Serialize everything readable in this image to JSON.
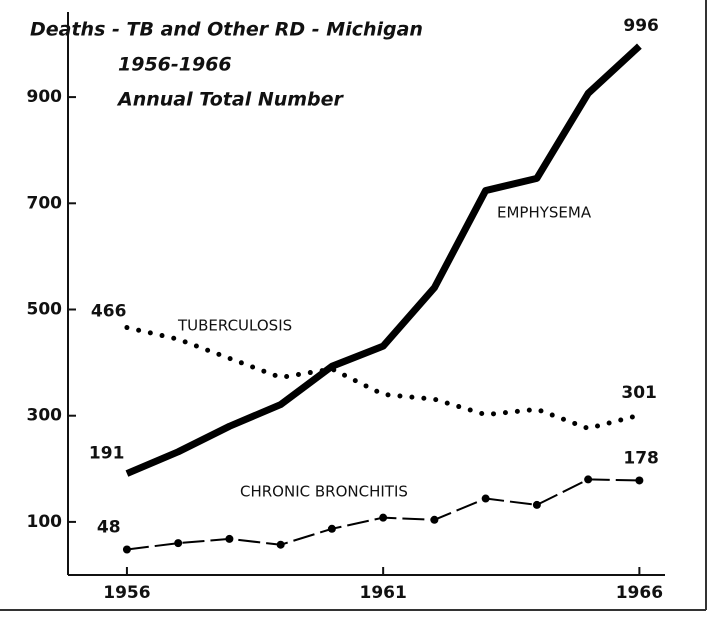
{
  "chart_data": {
    "type": "line",
    "title": "Deaths - TB and Other RD - Michigan",
    "subtitle": [
      "1956-1966",
      "Annual Total Number"
    ],
    "x": [
      1956,
      1957,
      1958,
      1959,
      1960,
      1961,
      1962,
      1963,
      1964,
      1965,
      1966
    ],
    "series": [
      {
        "name": "EMPHYSEMA",
        "color": "#000000",
        "line_style": "solid",
        "values": [
          191,
          232,
          280,
          321,
          393,
          431,
          541,
          724,
          747,
          907,
          996
        ]
      },
      {
        "name": "TUBERCULOSIS",
        "color": "#000000",
        "line_style": "dotted",
        "values": [
          466,
          444,
          408,
          372,
          388,
          340,
          331,
          302,
          312,
          276,
          301
        ]
      },
      {
        "name": "CHRONIC BRONCHITIS",
        "color": "#000000",
        "line_style": "dash-dot",
        "values": [
          48,
          60,
          68,
          57,
          87,
          108,
          104,
          144,
          132,
          180,
          178
        ]
      }
    ],
    "xlim": [
      1954.85,
      1966.5
    ],
    "xticks": [
      1956,
      1961,
      1966
    ],
    "ylim": [
      0,
      1000
    ],
    "yticks": [
      100,
      300,
      500,
      700,
      900
    ],
    "grid": false
  }
}
